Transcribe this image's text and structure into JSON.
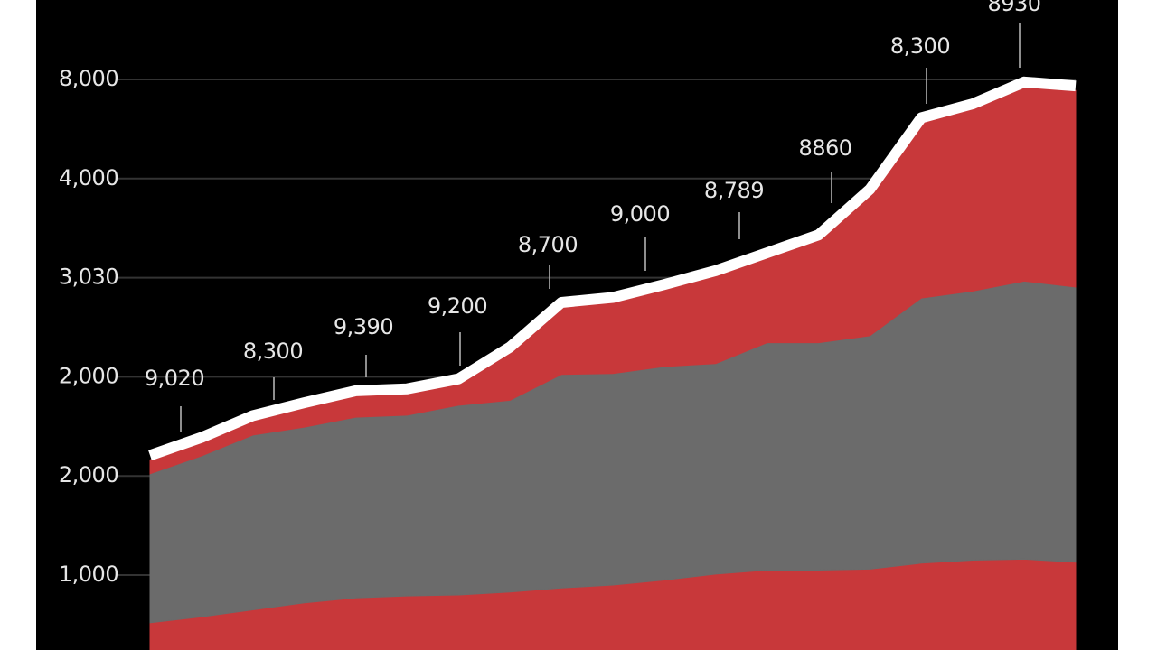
{
  "chart_data": {
    "type": "stacked_area",
    "categories": [
      null,
      null,
      null,
      null,
      null,
      null,
      null,
      null,
      null,
      null,
      null,
      null,
      null,
      null,
      null,
      null,
      null,
      null,
      null
    ],
    "ylim": [
      245,
      6791
    ],
    "y_axis_labels": [
      "8,000",
      "4,000",
      "3,030",
      "2,000",
      "2,000",
      "1,000"
    ],
    "outline_color": "#ffffff",
    "series": [
      {
        "color": "#c8383a",
        "values": [
          520,
          580,
          650,
          720,
          770,
          790,
          800,
          830,
          870,
          900,
          950,
          1010,
          1050,
          1050,
          1060,
          1120,
          1150,
          1160,
          1130
        ]
      },
      {
        "color": "#6b6b6b",
        "values": [
          1500,
          1620,
          1760,
          1770,
          1820,
          1820,
          1910,
          1930,
          2150,
          2130,
          2150,
          2120,
          2290,
          2290,
          2350,
          2670,
          2710,
          2800,
          2770
        ]
      },
      {
        "color": "#c8383a",
        "values": [
          140,
          140,
          150,
          200,
          220,
          220,
          220,
          490,
          680,
          720,
          780,
          890,
          860,
          1040,
          1430,
          1770,
          1840,
          1960,
          1980
        ]
      }
    ],
    "annotations": [
      "9,020",
      "8,300",
      "9,390",
      "9,200",
      "8,700",
      "9,000",
      "8,789",
      "8860",
      "8,300",
      "8930"
    ]
  }
}
